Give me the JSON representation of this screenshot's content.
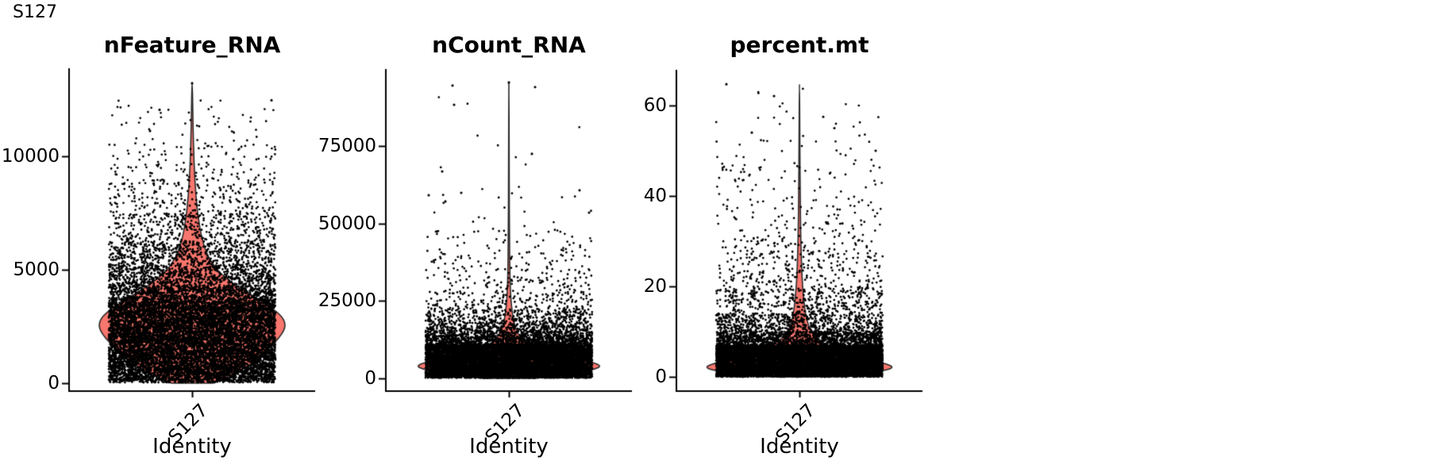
{
  "figure_title": "S127",
  "chart_data": {
    "type": "violin",
    "title": "S127",
    "legend": "none",
    "background_color": "#ffffff",
    "violin_fill_color": "#F8766D",
    "violin_outline_color": "#2b2b2b",
    "point_color": "#000000",
    "axis_color": "#000000",
    "x_categories": [
      "S127"
    ],
    "panels": [
      {
        "title": "nFeature_RNA",
        "x_tick_label": "S127",
        "x_axis_title": "Identity",
        "y_ticks": [
          0,
          5000,
          10000
        ],
        "y_tick_labels": [
          "0",
          "5000",
          "10000"
        ],
        "y_range": [
          0,
          13900
        ],
        "data_min": 30,
        "data_max": 13200,
        "violin_peak_value": 2600,
        "dense_band": [
          150,
          4300
        ],
        "violin_profile": [
          [
            0,
            0.22
          ],
          [
            300,
            0.4
          ],
          [
            800,
            0.62
          ],
          [
            1500,
            0.82
          ],
          [
            2200,
            0.97
          ],
          [
            2600,
            1.0
          ],
          [
            3000,
            0.95
          ],
          [
            3500,
            0.78
          ],
          [
            4000,
            0.58
          ],
          [
            4600,
            0.36
          ],
          [
            5300,
            0.2
          ],
          [
            6200,
            0.11
          ],
          [
            7500,
            0.055
          ],
          [
            9000,
            0.028
          ],
          [
            10500,
            0.014
          ],
          [
            12000,
            0.007
          ],
          [
            13200,
            0.002
          ]
        ],
        "point_distribution": [
          [
            30,
            150,
            0.02
          ],
          [
            150,
            3600,
            0.7
          ],
          [
            3600,
            4300,
            0.09
          ],
          [
            4300,
            5200,
            0.075
          ],
          [
            5200,
            6300,
            0.055
          ],
          [
            6300,
            7500,
            0.03
          ],
          [
            7500,
            9000,
            0.018
          ],
          [
            9000,
            10500,
            0.008
          ],
          [
            10500,
            12500,
            0.004
          ]
        ],
        "outliers": [
          [
            13200,
            0
          ],
          [
            12450,
            100
          ],
          [
            12030,
            -41
          ],
          [
            11100,
            -53
          ]
        ]
      },
      {
        "title": "nCount_RNA",
        "x_tick_label": "S127",
        "x_axis_title": "Identity",
        "y_ticks": [
          0,
          25000,
          50000,
          75000
        ],
        "y_tick_labels": [
          "0",
          "25000",
          "50000",
          "75000"
        ],
        "y_range": [
          0,
          99600
        ],
        "data_min": 150,
        "data_max": 95500,
        "violin_peak_value": 4200,
        "dense_band": [
          150,
          13000
        ],
        "violin_profile": [
          [
            0,
            0.28
          ],
          [
            1200,
            0.6
          ],
          [
            2600,
            0.88
          ],
          [
            4000,
            1.0
          ],
          [
            5500,
            0.86
          ],
          [
            7000,
            0.62
          ],
          [
            8500,
            0.4
          ],
          [
            10000,
            0.26
          ],
          [
            12000,
            0.155
          ],
          [
            14500,
            0.095
          ],
          [
            17500,
            0.058
          ],
          [
            21000,
            0.036
          ],
          [
            26000,
            0.02
          ],
          [
            33000,
            0.011
          ],
          [
            45000,
            0.006
          ],
          [
            65000,
            0.003
          ],
          [
            95500,
            0.001
          ]
        ],
        "point_distribution": [
          [
            150,
            1000,
            0.06
          ],
          [
            1000,
            11000,
            0.74
          ],
          [
            11000,
            14000,
            0.08
          ],
          [
            14000,
            18000,
            0.055
          ],
          [
            18000,
            22000,
            0.028
          ],
          [
            22000,
            28000,
            0.017
          ],
          [
            28000,
            36000,
            0.01
          ],
          [
            36000,
            48000,
            0.0075
          ],
          [
            48000,
            62000,
            0.002
          ],
          [
            62000,
            95000,
            0.0005
          ]
        ],
        "outliers": [
          [
            95500,
            0
          ],
          [
            94500,
            -71
          ],
          [
            94000,
            33
          ],
          [
            88300,
            -69
          ],
          [
            72450,
            29
          ],
          [
            66800,
            -84
          ],
          [
            60700,
            89
          ],
          [
            59900,
            -60
          ],
          [
            59100,
            -101
          ],
          [
            57100,
            -80
          ],
          [
            53500,
            101
          ]
        ]
      },
      {
        "title": "percent.mt",
        "x_tick_label": "S127",
        "x_axis_title": "Identity",
        "y_ticks": [
          0,
          20,
          40,
          60
        ],
        "y_tick_labels": [
          "0",
          "20",
          "40",
          "60"
        ],
        "y_range": [
          0,
          67.9
        ],
        "data_min": 0,
        "data_max": 64.7,
        "violin_peak_value": 2.2,
        "dense_band": [
          0,
          8
        ],
        "violin_profile": [
          [
            0,
            0.33
          ],
          [
            0.8,
            0.68
          ],
          [
            1.5,
            0.93
          ],
          [
            2.2,
            1.0
          ],
          [
            3,
            0.9
          ],
          [
            4,
            0.7
          ],
          [
            5,
            0.52
          ],
          [
            6.5,
            0.33
          ],
          [
            8,
            0.21
          ],
          [
            10,
            0.12
          ],
          [
            13,
            0.07
          ],
          [
            17,
            0.045
          ],
          [
            22,
            0.027
          ],
          [
            30,
            0.014
          ],
          [
            40,
            0.008
          ],
          [
            52,
            0.004
          ],
          [
            64.7,
            0.001
          ]
        ],
        "point_distribution": [
          [
            0,
            7,
            0.78
          ],
          [
            7,
            10,
            0.095
          ],
          [
            10,
            14,
            0.052
          ],
          [
            14,
            20,
            0.033
          ],
          [
            20,
            28,
            0.019
          ],
          [
            28,
            38,
            0.012
          ],
          [
            38,
            48,
            0.006
          ],
          [
            48,
            58,
            0.0025
          ],
          [
            58,
            64,
            0.0005
          ]
        ],
        "outliers": [
          [
            64.7,
            -92
          ],
          [
            62.1,
            -32
          ],
          [
            57.5,
            30
          ],
          [
            55,
            44
          ],
          [
            54,
            -60
          ],
          [
            50,
            96
          ]
        ]
      }
    ],
    "render_hints": {
      "points_per_violin": 12000,
      "jitter": "uniform",
      "grid": "off",
      "legend_position": "none"
    }
  }
}
